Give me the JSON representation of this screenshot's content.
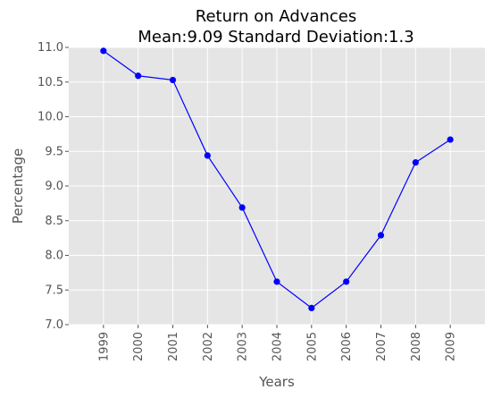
{
  "chart_data": {
    "type": "line",
    "title": "Return on Advances",
    "subtitle": "Mean:9.09 Standard Deviation:1.3",
    "xlabel": "Years",
    "ylabel": "Percentage",
    "categories": [
      "1999",
      "2000",
      "2001",
      "2002",
      "2003",
      "2004",
      "2005",
      "2006",
      "2007",
      "2008",
      "2009"
    ],
    "series": [
      {
        "values": [
          10.95,
          10.59,
          10.53,
          9.44,
          8.69,
          7.62,
          7.24,
          7.62,
          8.29,
          9.34,
          9.67
        ]
      }
    ],
    "ylim": [
      7.0,
      11.0
    ],
    "yticks": [
      "7.0",
      "7.5",
      "8.0",
      "8.5",
      "9.0",
      "9.5",
      "10.0",
      "10.5",
      "11.0"
    ],
    "grid": true,
    "colors": {
      "line": "#0000ff",
      "plot_background": "#e5e5e5",
      "grid": "#ffffff"
    }
  }
}
